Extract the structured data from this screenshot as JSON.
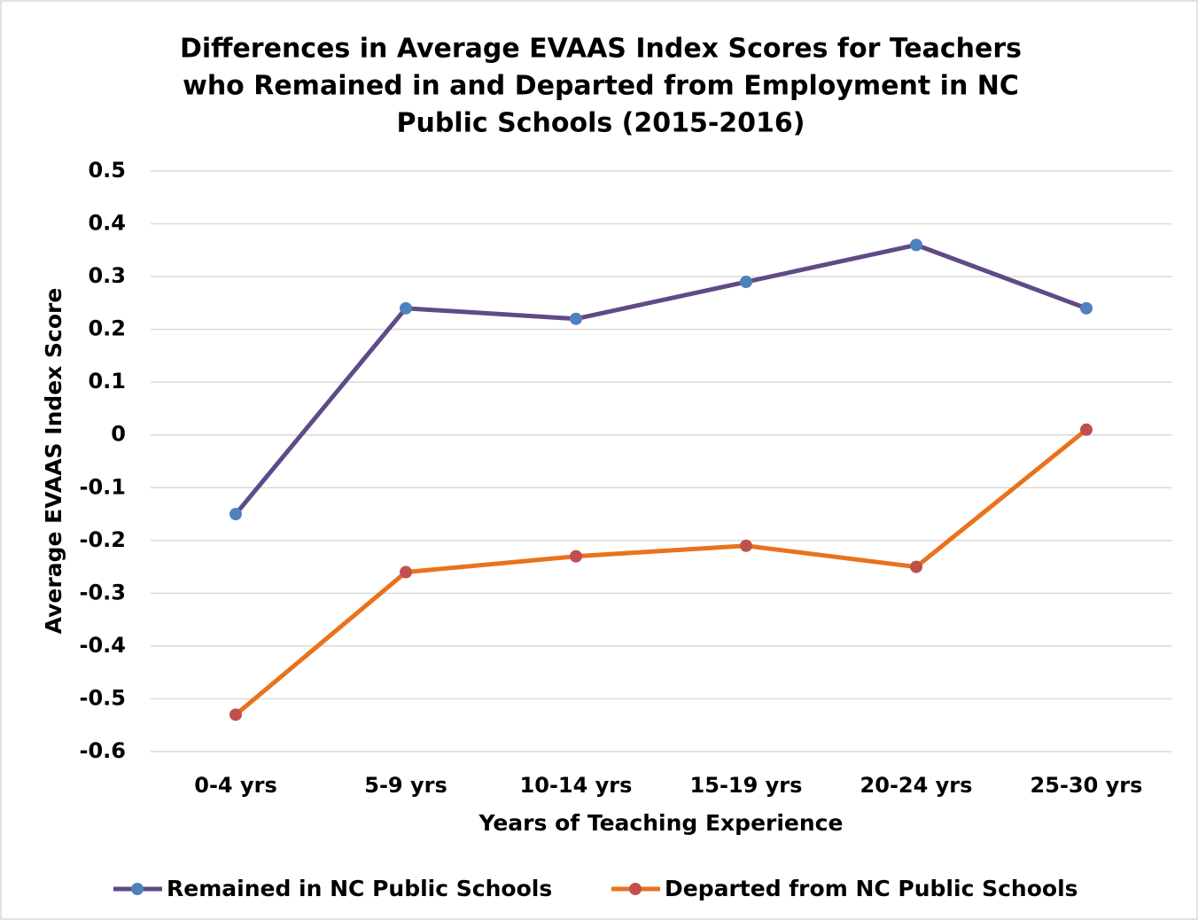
{
  "chart_data": {
    "type": "line",
    "title": [
      "Differences in Average EVAAS Index Scores for Teachers",
      "who Remained in and Departed from Employment in NC",
      "Public Schools (2015-2016)"
    ],
    "x_label": "Years of Teaching Experience",
    "y_label": "Average EVAAS Index Score",
    "categories": [
      "0-4 yrs",
      "5-9 yrs",
      "10-14 yrs",
      "15-19 yrs",
      "20-24 yrs",
      "25-30 yrs"
    ],
    "series": [
      {
        "name": "Remained in NC Public Schools",
        "color": "#5e4b87",
        "marker_color": "#4f81bd",
        "values": [
          -0.15,
          0.24,
          0.22,
          0.29,
          0.36,
          0.24
        ]
      },
      {
        "name": "Departed from NC Public Schools",
        "color": "#e8731c",
        "marker_color": "#c0504d",
        "values": [
          -0.53,
          -0.26,
          -0.23,
          -0.21,
          -0.25,
          0.01
        ]
      }
    ],
    "ylim": [
      -0.6,
      0.5
    ],
    "yticks": [
      0.5,
      0.4,
      0.3,
      0.2,
      0.1,
      0,
      -0.1,
      -0.2,
      -0.3,
      -0.4,
      -0.5,
      -0.6
    ],
    "grid": true,
    "legend": "bottom"
  }
}
